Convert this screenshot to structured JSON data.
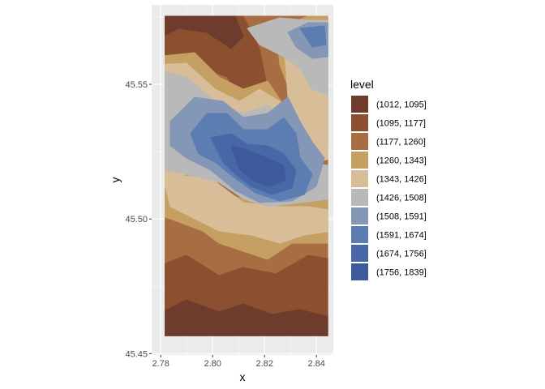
{
  "chart_data": {
    "type": "contour",
    "title": "",
    "xlabel": "x",
    "ylabel": "y",
    "xlim": [
      2.7765,
      2.8465
    ],
    "ylim": [
      45.4495,
      45.5795
    ],
    "x_ticks": [
      2.78,
      2.8,
      2.82,
      2.84
    ],
    "x_tick_labels": [
      "2.78",
      "2.80",
      "2.82",
      "2.84"
    ],
    "y_ticks": [
      45.45,
      45.5,
      45.55
    ],
    "y_tick_labels": [
      "45.45",
      "45.50",
      "45.55"
    ],
    "extent": {
      "x": [
        2.7815,
        2.8445
      ],
      "y": [
        45.4565,
        45.5775
      ]
    },
    "grid": true,
    "legend": {
      "title": "level",
      "position": "right",
      "entries": [
        {
          "label": "(1012, 1095]",
          "color": "#6e3c2c"
        },
        {
          "label": "(1095, 1177]",
          "color": "#8c4f30"
        },
        {
          "label": "(1177, 1260]",
          "color": "#a96d43"
        },
        {
          "label": "(1260, 1343]",
          "color": "#c6a062"
        },
        {
          "label": "(1343, 1426]",
          "color": "#d8be98"
        },
        {
          "label": "(1426, 1508]",
          "color": "#b9b9b9"
        },
        {
          "label": "(1508, 1591]",
          "color": "#8497b7"
        },
        {
          "label": "(1591, 1674]",
          "color": "#5b7db2"
        },
        {
          "label": "(1674, 1756]",
          "color": "#4767a6"
        },
        {
          "label": "(1756, 1839]",
          "color": "#3e5a9a"
        }
      ]
    }
  }
}
